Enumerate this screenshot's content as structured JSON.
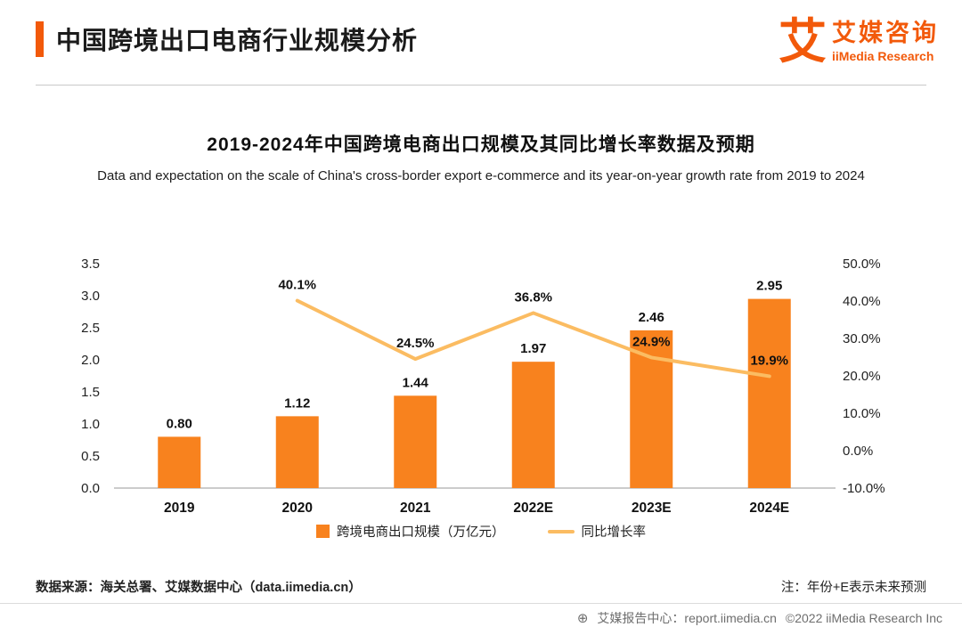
{
  "colors": {
    "accent": "#F2590A",
    "bar": "#F8821E",
    "line": "#FBBC62"
  },
  "header": {
    "title": "中国跨境出口电商行业规模分析",
    "logo": {
      "mark": "艾",
      "brand_cn": "艾媒咨询",
      "brand_en": "iiMedia Research"
    }
  },
  "chart": {
    "title": "2019-2024年中国跨境电商出口规模及其同比增长率数据及预期",
    "subtitle": "Data and expectation on the scale of China's cross-border export e-commerce and its year-on-year growth rate from 2019 to 2024"
  },
  "chart_data": {
    "type": "bar+line",
    "title": "2019-2024年中国跨境电商出口规模及其同比增长率数据及预期",
    "categories": [
      "2019",
      "2020",
      "2021",
      "2022E",
      "2023E",
      "2024E"
    ],
    "series": [
      {
        "name": "跨境电商出口规模（万亿元）",
        "type": "bar",
        "axis": "left",
        "color": "#F8821E",
        "values": [
          0.8,
          1.12,
          1.44,
          1.97,
          2.46,
          2.95
        ],
        "labels": [
          "0.80",
          "1.12",
          "1.44",
          "1.97",
          "2.46",
          "2.95"
        ]
      },
      {
        "name": "同比增长率",
        "type": "line",
        "axis": "right",
        "color": "#FBBC62",
        "values": [
          null,
          40.1,
          24.5,
          36.8,
          24.9,
          19.9
        ],
        "labels": [
          "",
          "40.1%",
          "24.5%",
          "36.8%",
          "24.9%",
          "19.9%"
        ]
      }
    ],
    "left_axis": {
      "min": 0,
      "max": 3.5,
      "step": 0.5,
      "ticks": [
        "3.5",
        "3.0",
        "2.5",
        "2.0",
        "1.5",
        "1.0",
        "0.5",
        "0.0"
      ]
    },
    "right_axis": {
      "min": -10,
      "max": 50,
      "step": 10,
      "ticks": [
        "50.0%",
        "40.0%",
        "30.0%",
        "20.0%",
        "10.0%",
        "0.0%",
        "-10.0%"
      ]
    },
    "grid": false,
    "legend_position": "bottom"
  },
  "footer": {
    "source": "数据来源：海关总署、艾媒数据中心（data.iimedia.cn）",
    "note": "注：年份+E表示未来预测",
    "report_icon": "⊕",
    "report_center": "艾媒报告中心：report.iimedia.cn",
    "copyright": "©2022  iiMedia Research Inc"
  }
}
